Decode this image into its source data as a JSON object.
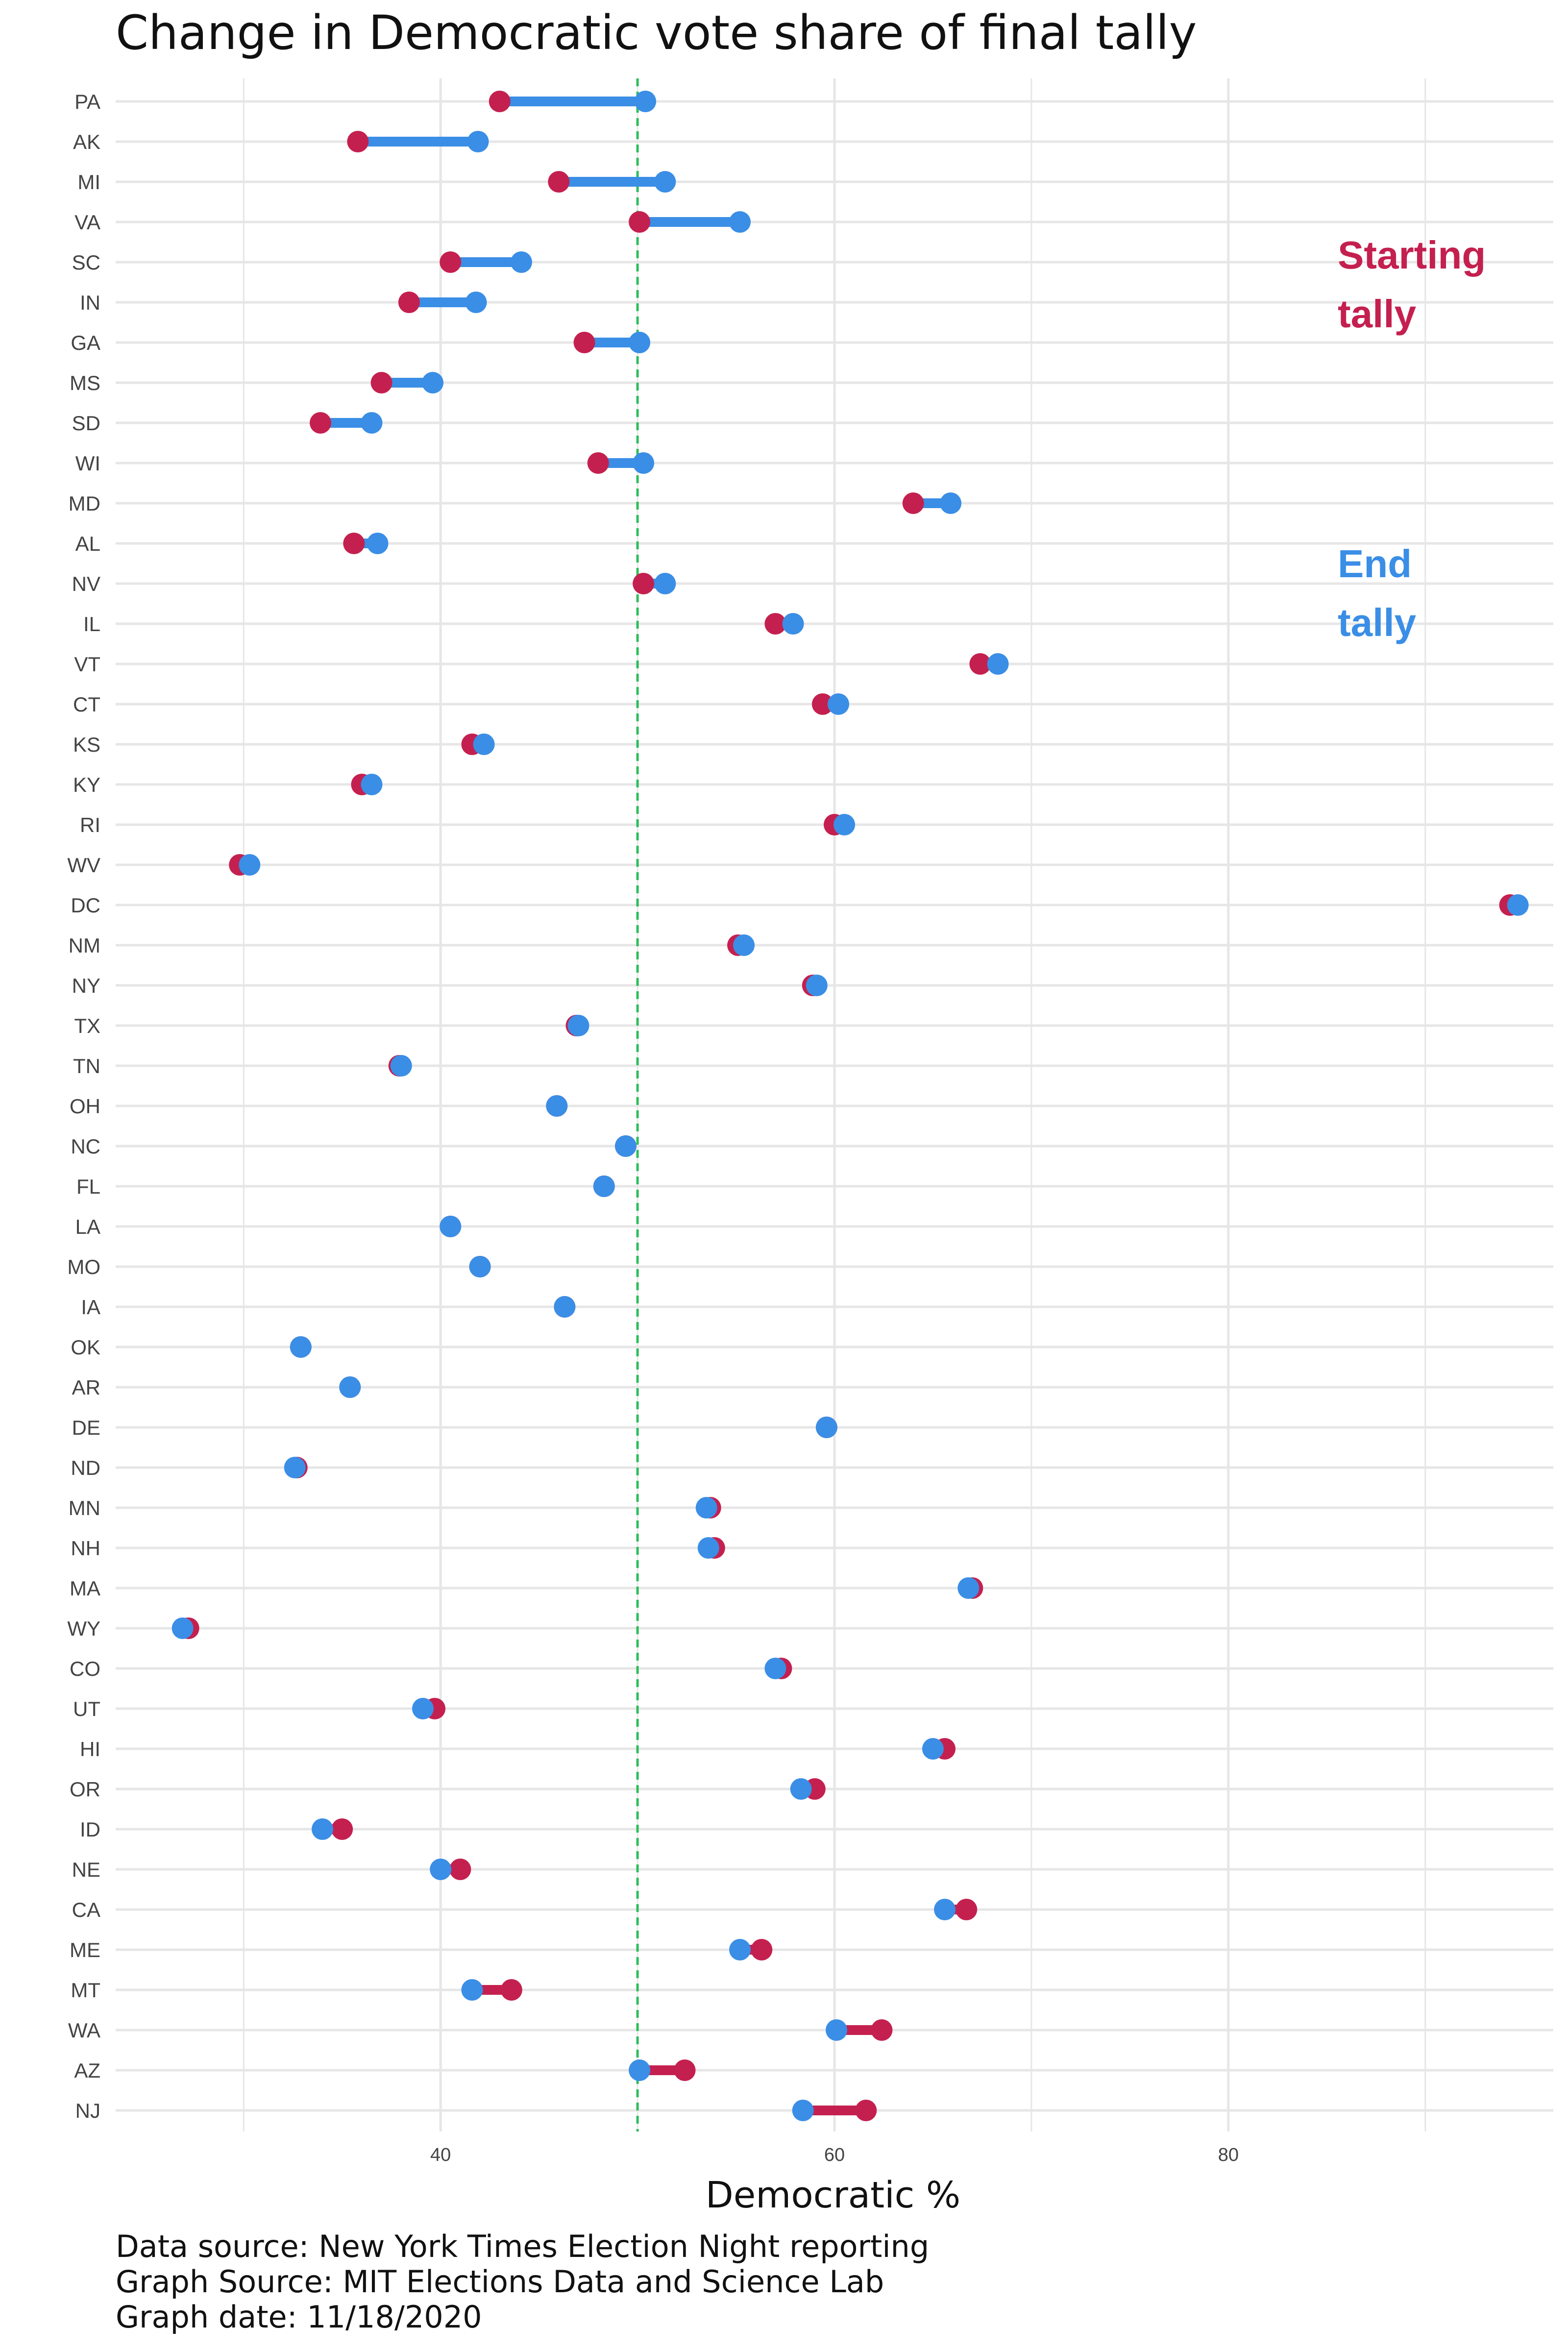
{
  "chart_data": {
    "type": "dumbbell",
    "title": "Change in Democratic vote share of final tally",
    "xlabel": "Democratic %",
    "ylabel": "",
    "xlim": [
      23.5,
      96.5
    ],
    "x_ticks": [
      40,
      60,
      80
    ],
    "reference_line": 50,
    "grid": true,
    "colors": {
      "start": "#C4204F",
      "end": "#3A8EE6",
      "reference": "#2DBE5A",
      "grid": "#E6E6E6"
    },
    "legend": {
      "position": "right",
      "start_label_line1": "Starting",
      "start_label_line2": "tally",
      "end_label_line1": "End",
      "end_label_line2": "tally"
    },
    "series": [
      {
        "name": "Starting tally",
        "key": "start"
      },
      {
        "name": "End tally",
        "key": "end"
      }
    ],
    "states": [
      {
        "state": "PA",
        "start": 43.0,
        "end": 50.4
      },
      {
        "state": "AK",
        "start": 35.8,
        "end": 41.9
      },
      {
        "state": "MI",
        "start": 46.0,
        "end": 51.4
      },
      {
        "state": "VA",
        "start": 50.1,
        "end": 55.2
      },
      {
        "state": "SC",
        "start": 40.5,
        "end": 44.1
      },
      {
        "state": "IN",
        "start": 38.4,
        "end": 41.8
      },
      {
        "state": "GA",
        "start": 47.3,
        "end": 50.1
      },
      {
        "state": "MS",
        "start": 37.0,
        "end": 39.6
      },
      {
        "state": "SD",
        "start": 33.9,
        "end": 36.5
      },
      {
        "state": "WI",
        "start": 48.0,
        "end": 50.3
      },
      {
        "state": "MD",
        "start": 64.0,
        "end": 65.9
      },
      {
        "state": "AL",
        "start": 35.6,
        "end": 36.8
      },
      {
        "state": "NV",
        "start": 50.3,
        "end": 51.4
      },
      {
        "state": "IL",
        "start": 57.0,
        "end": 57.9
      },
      {
        "state": "VT",
        "start": 67.4,
        "end": 68.3
      },
      {
        "state": "CT",
        "start": 59.4,
        "end": 60.2
      },
      {
        "state": "KS",
        "start": 41.6,
        "end": 42.2
      },
      {
        "state": "KY",
        "start": 36.0,
        "end": 36.5
      },
      {
        "state": "RI",
        "start": 60.0,
        "end": 60.5
      },
      {
        "state": "WV",
        "start": 29.8,
        "end": 30.3
      },
      {
        "state": "DC",
        "start": 94.3,
        "end": 94.7
      },
      {
        "state": "NM",
        "start": 55.1,
        "end": 55.4
      },
      {
        "state": "NY",
        "start": 58.9,
        "end": 59.1
      },
      {
        "state": "TX",
        "start": 46.9,
        "end": 47.0
      },
      {
        "state": "TN",
        "start": 37.9,
        "end": 38.0
      },
      {
        "state": "OH",
        "start": 45.9,
        "end": 45.9
      },
      {
        "state": "NC",
        "start": 49.4,
        "end": 49.4
      },
      {
        "state": "FL",
        "start": 48.3,
        "end": 48.3
      },
      {
        "state": "LA",
        "start": 40.5,
        "end": 40.5
      },
      {
        "state": "MO",
        "start": 42.0,
        "end": 42.0
      },
      {
        "state": "IA",
        "start": 46.3,
        "end": 46.3
      },
      {
        "state": "OK",
        "start": 32.9,
        "end": 32.9
      },
      {
        "state": "AR",
        "start": 35.4,
        "end": 35.4
      },
      {
        "state": "DE",
        "start": 59.6,
        "end": 59.6
      },
      {
        "state": "ND",
        "start": 32.7,
        "end": 32.6
      },
      {
        "state": "MN",
        "start": 53.7,
        "end": 53.5
      },
      {
        "state": "NH",
        "start": 53.9,
        "end": 53.6
      },
      {
        "state": "MA",
        "start": 67.0,
        "end": 66.8
      },
      {
        "state": "WY",
        "start": 27.2,
        "end": 26.9
      },
      {
        "state": "CO",
        "start": 57.3,
        "end": 57.0
      },
      {
        "state": "UT",
        "start": 39.7,
        "end": 39.1
      },
      {
        "state": "HI",
        "start": 65.6,
        "end": 65.0
      },
      {
        "state": "OR",
        "start": 59.0,
        "end": 58.3
      },
      {
        "state": "ID",
        "start": 35.0,
        "end": 34.0
      },
      {
        "state": "NE",
        "start": 41.0,
        "end": 40.0
      },
      {
        "state": "CA",
        "start": 66.7,
        "end": 65.6
      },
      {
        "state": "ME",
        "start": 56.3,
        "end": 55.2
      },
      {
        "state": "MT",
        "start": 43.6,
        "end": 41.6
      },
      {
        "state": "WA",
        "start": 62.4,
        "end": 60.1
      },
      {
        "state": "AZ",
        "start": 52.4,
        "end": 50.1
      },
      {
        "state": "NJ",
        "start": 61.6,
        "end": 58.4
      }
    ]
  },
  "caption": {
    "line1": "Data source: New York Times Election Night reporting",
    "line2": "Graph Source: MIT Elections Data and Science Lab",
    "line3": "Graph date: 11/18/2020"
  }
}
